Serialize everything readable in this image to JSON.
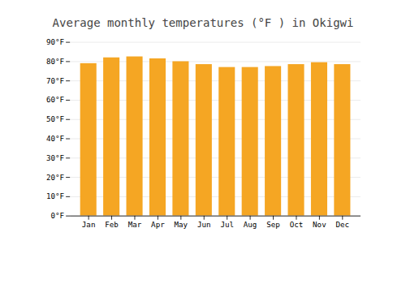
{
  "chart_data": {
    "type": "bar",
    "title": "Average monthly temperatures (°F ) in Okigwi",
    "categories": [
      "Jan",
      "Feb",
      "Mar",
      "Apr",
      "May",
      "Jun",
      "Jul",
      "Aug",
      "Sep",
      "Oct",
      "Nov",
      "Dec"
    ],
    "values": [
      79,
      82,
      82.5,
      81.5,
      80,
      78.5,
      77,
      77,
      77.5,
      78.5,
      79.5,
      78.5
    ],
    "color": "#F5A623",
    "ylim": [
      0,
      90
    ],
    "yticks": [
      {
        "value": 0,
        "label": "0°F"
      },
      {
        "value": 10,
        "label": "10°F"
      },
      {
        "value": 20,
        "label": "20°F"
      },
      {
        "value": 30,
        "label": "30°F"
      },
      {
        "value": 40,
        "label": "40°F"
      },
      {
        "value": 50,
        "label": "50°F"
      },
      {
        "value": 60,
        "label": "60°F"
      },
      {
        "value": 70,
        "label": "70°F"
      },
      {
        "value": 80,
        "label": "80°F"
      },
      {
        "value": 90,
        "label": "90°F"
      }
    ],
    "grid": true
  }
}
